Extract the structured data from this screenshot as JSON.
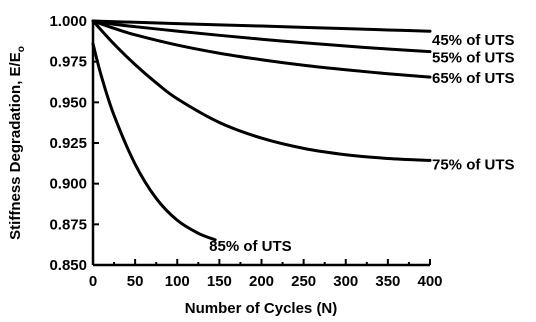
{
  "chart_data": {
    "type": "line",
    "title": "",
    "xlabel": "Number of Cycles (N)",
    "ylabel_main": "Stiffness Degradation, E/E",
    "ylabel_sub": "o",
    "xlim": [
      0,
      400
    ],
    "ylim": [
      0.85,
      1.0
    ],
    "x_ticks": [
      0,
      50,
      100,
      150,
      200,
      250,
      300,
      350,
      400
    ],
    "y_ticks": [
      0.85,
      0.875,
      0.9,
      0.925,
      0.95,
      0.975,
      1.0
    ],
    "y_tick_labels": [
      "0.850",
      "0.875",
      "0.900",
      "0.925",
      "0.950",
      "0.975",
      "1.000"
    ],
    "grid": false,
    "legend": "inline-labels",
    "series": [
      {
        "name": "45% of UTS",
        "x": [
          0,
          50,
          100,
          150,
          200,
          250,
          300,
          350,
          400
        ],
        "y": [
          1.0,
          0.9992,
          0.9984,
          0.9976,
          0.9969,
          0.9961,
          0.9953,
          0.9945,
          0.9937
        ]
      },
      {
        "name": "55% of UTS",
        "x": [
          0,
          25,
          50,
          100,
          150,
          200,
          250,
          300,
          350,
          400
        ],
        "y": [
          1.0,
          0.998,
          0.9965,
          0.9938,
          0.9912,
          0.9888,
          0.9866,
          0.9846,
          0.9828,
          0.9812
        ]
      },
      {
        "name": "65% of UTS",
        "x": [
          0,
          25,
          50,
          100,
          150,
          200,
          250,
          300,
          350,
          400
        ],
        "y": [
          1.0,
          0.9955,
          0.9915,
          0.9852,
          0.9802,
          0.9762,
          0.9728,
          0.97,
          0.9676,
          0.9655
        ]
      },
      {
        "name": "75% of UTS",
        "x": [
          0,
          25,
          50,
          75,
          100,
          150,
          200,
          250,
          300,
          350,
          400
        ],
        "y": [
          1.0,
          0.9858,
          0.9732,
          0.962,
          0.9522,
          0.9376,
          0.928,
          0.9217,
          0.9178,
          0.9155,
          0.9143
        ]
      },
      {
        "name": "85% of UTS",
        "x": [
          0,
          10,
          25,
          50,
          75,
          100,
          125,
          145
        ],
        "y": [
          0.986,
          0.966,
          0.942,
          0.912,
          0.891,
          0.8775,
          0.8695,
          0.8655
        ]
      }
    ]
  }
}
